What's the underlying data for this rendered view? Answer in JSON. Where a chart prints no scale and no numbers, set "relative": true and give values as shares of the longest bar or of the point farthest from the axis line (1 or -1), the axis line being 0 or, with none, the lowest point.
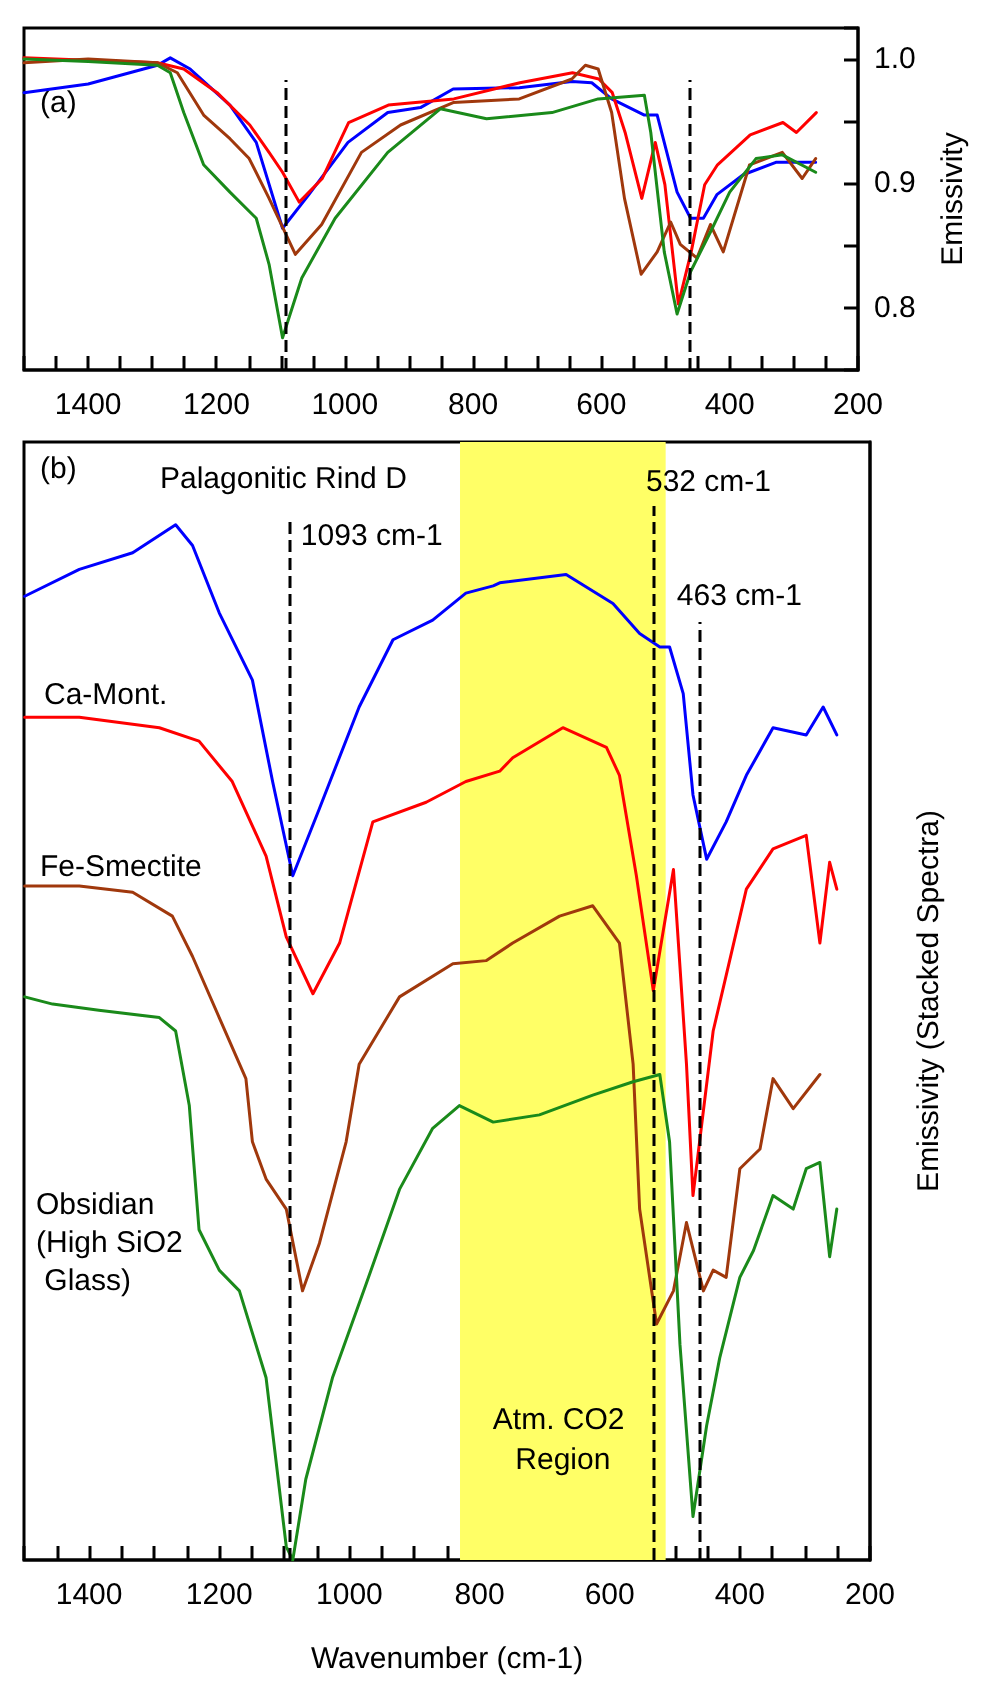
{
  "chart_data": [
    {
      "type": "line",
      "ylabel": "Emissivity",
      "annotations": [
        "(a)"
      ],
      "xlim": [
        1500,
        200
      ],
      "ylim": [
        0.75,
        1.025
      ],
      "xticks": [
        {
          "value": 1500,
          "label": null
        },
        {
          "value": 1450,
          "label": null
        },
        1400,
        {
          "value": 1350,
          "label": null
        },
        {
          "value": 1300,
          "label": null
        },
        {
          "value": 1250,
          "label": null
        },
        1200,
        {
          "value": 1150,
          "label": null
        },
        {
          "value": 1100,
          "label": null
        },
        {
          "value": 1050,
          "label": null
        },
        1000,
        {
          "value": 950,
          "label": null
        },
        {
          "value": 900,
          "label": null
        },
        {
          "value": 850,
          "label": null
        },
        800,
        {
          "value": 750,
          "label": null
        },
        {
          "value": 700,
          "label": null
        },
        {
          "value": 650,
          "label": null
        },
        600,
        {
          "value": 550,
          "label": null
        },
        {
          "value": 500,
          "label": null
        },
        {
          "value": 450,
          "label": null
        },
        400,
        {
          "value": 350,
          "label": null
        },
        {
          "value": 300,
          "label": null
        },
        {
          "value": 250,
          "label": null
        },
        200
      ],
      "yticks": [
        0.8,
        {
          "value": 0.85,
          "label": null
        },
        0.9,
        {
          "value": 0.95,
          "label": null
        },
        {
          "value": 1,
          "label": "1.0"
        }
      ],
      "ref_lines": [
        {
          "axis": "x",
          "value": 1093,
          "color": "#000000",
          "line_style": "dashed"
        },
        {
          "axis": "x",
          "value": 463,
          "color": "#000000",
          "line_style": "dashed"
        }
      ],
      "series": [
        {
          "color": "#0000ff",
          "x": [
            1500,
            1400,
            1292,
            1272,
            1241,
            1179,
            1138,
            1097,
            1056,
            995,
            933,
            882,
            831,
            728,
            646,
            615,
            584,
            533,
            513,
            482,
            461,
            441,
            420,
            379,
            328,
            266
          ],
          "values": [
            0.973,
            0.98,
            0.995,
            1.001,
            0.992,
            0.963,
            0.933,
            0.864,
            0.891,
            0.933,
            0.957,
            0.961,
            0.976,
            0.977,
            0.982,
            0.981,
            0.968,
            0.955,
            0.955,
            0.893,
            0.872,
            0.872,
            0.891,
            0.907,
            0.917,
            0.917
          ]
        },
        {
          "color": "#ff0000",
          "x": [
            1500,
            1400,
            1292,
            1251,
            1199,
            1148,
            1118,
            1097,
            1071,
            1035,
            994,
            932,
            830,
            727,
            645,
            604,
            583,
            563,
            537,
            516,
            501,
            480,
            460,
            439,
            419,
            368,
            317,
            296,
            265
          ],
          "values": [
            1.001,
            0.999,
            0.997,
            0.992,
            0.973,
            0.947,
            0.925,
            0.909,
            0.885,
            0.904,
            0.949,
            0.963,
            0.968,
            0.981,
            0.989,
            0.984,
            0.973,
            0.941,
            0.888,
            0.933,
            0.899,
            0.803,
            0.845,
            0.899,
            0.915,
            0.939,
            0.949,
            0.941,
            0.957
          ]
        },
        {
          "color": "#a0380c",
          "x": [
            1500,
            1400,
            1292,
            1261,
            1220,
            1179,
            1149,
            1118,
            1077,
            1036,
            974,
            913,
            831,
            728,
            646,
            625,
            605,
            584,
            564,
            538,
            513,
            492,
            477,
            451,
            430,
            410,
            369,
            318,
            287,
            266
          ],
          "values": [
            0.997,
            1.0,
            0.997,
            0.989,
            0.955,
            0.936,
            0.92,
            0.888,
            0.843,
            0.867,
            0.925,
            0.947,
            0.965,
            0.968,
            0.984,
            0.995,
            0.992,
            0.957,
            0.888,
            0.827,
            0.845,
            0.869,
            0.851,
            0.84,
            0.867,
            0.845,
            0.915,
            0.925,
            0.904,
            0.92
          ]
        },
        {
          "color": "#1a8a1a",
          "x": [
            1500,
            1400,
            1292,
            1272,
            1251,
            1220,
            1179,
            1138,
            1118,
            1097,
            1067,
            1015,
            933,
            851,
            779,
            677,
            605,
            533,
            523,
            502,
            482,
            461,
            430,
            400,
            359,
            318,
            266
          ],
          "values": [
            1.0,
            0.998,
            0.995,
            0.989,
            0.957,
            0.915,
            0.893,
            0.872,
            0.835,
            0.776,
            0.824,
            0.872,
            0.925,
            0.96,
            0.952,
            0.957,
            0.968,
            0.971,
            0.941,
            0.845,
            0.795,
            0.829,
            0.861,
            0.893,
            0.92,
            0.923,
            0.909
          ]
        }
      ]
    },
    {
      "type": "line",
      "relative": true,
      "xlabel": "Wavenumber (cm-1)",
      "ylabel": "Emissivity (Stacked Spectra)",
      "annotations": [
        "(b)"
      ],
      "xlim": [
        1500,
        200
      ],
      "xticks": [
        {
          "value": 1500,
          "label": null
        },
        {
          "value": 1450,
          "label": null
        },
        1400,
        {
          "value": 1350,
          "label": null
        },
        {
          "value": 1300,
          "label": null
        },
        {
          "value": 1250,
          "label": null
        },
        1200,
        {
          "value": 1150,
          "label": null
        },
        {
          "value": 1100,
          "label": null
        },
        {
          "value": 1050,
          "label": null
        },
        1000,
        {
          "value": 950,
          "label": null
        },
        {
          "value": 900,
          "label": null
        },
        {
          "value": 850,
          "label": null
        },
        800,
        {
          "value": 750,
          "label": null
        },
        {
          "value": 700,
          "label": null
        },
        {
          "value": 650,
          "label": null
        },
        600,
        {
          "value": 550,
          "label": null
        },
        {
          "value": 500,
          "label": null
        },
        {
          "value": 450,
          "label": null
        },
        400,
        {
          "value": 350,
          "label": null
        },
        {
          "value": 300,
          "label": null
        },
        {
          "value": 250,
          "label": null
        },
        200
      ],
      "ref_lines": [
        {
          "axis": "x",
          "value": 1093,
          "label": "1093 cm-1",
          "color": "#000000",
          "line_style": "dashed"
        },
        {
          "axis": "x",
          "value": 532,
          "label": "532 cm-1",
          "color": "#000000",
          "line_style": "dashed"
        },
        {
          "axis": "x",
          "value": 463,
          "label": "463 cm-1",
          "color": "#000000",
          "line_style": "dashed"
        }
      ],
      "bands": [
        {
          "axis": "x",
          "from": 830,
          "to": 514,
          "label": "Atm. CO2 Region",
          "color": "#ffff66"
        }
      ],
      "series": [
        {
          "name": "Palagonitic Rind D",
          "color": "#0000ff",
          "x": [
            1499,
            1415,
            1333,
            1267,
            1241,
            1200,
            1149,
            1118,
            1087,
            1046,
            985,
            933,
            872,
            821,
            779,
            769,
            667,
            595,
            554,
            523,
            508,
            487,
            472,
            451,
            421,
            390,
            349,
            298,
            272,
            251
          ],
          "values": [
            0.931,
            0.957,
            0.973,
            1.0,
            0.98,
            0.915,
            0.85,
            0.752,
            0.661,
            0.726,
            0.824,
            0.889,
            0.908,
            0.934,
            0.941,
            0.944,
            0.952,
            0.924,
            0.895,
            0.882,
            0.882,
            0.837,
            0.739,
            0.677,
            0.713,
            0.758,
            0.804,
            0.797,
            0.824,
            0.797
          ]
        },
        {
          "name": "Ca-Mont.",
          "color": "#ff0000",
          "x": [
            1499,
            1415,
            1292,
            1231,
            1180,
            1128,
            1097,
            1056,
            1015,
            964,
            882,
            821,
            769,
            749,
            672,
            605,
            585,
            559,
            533,
            502,
            482,
            472,
            441,
            390,
            349,
            298,
            277,
            262,
            251
          ],
          "values": [
            0.814,
            0.814,
            0.804,
            0.791,
            0.752,
            0.68,
            0.602,
            0.547,
            0.596,
            0.713,
            0.732,
            0.752,
            0.762,
            0.775,
            0.804,
            0.785,
            0.758,
            0.661,
            0.55,
            0.667,
            0.479,
            0.352,
            0.511,
            0.648,
            0.687,
            0.7,
            0.596,
            0.674,
            0.648
          ]
        },
        {
          "name": "Fe-Smectite",
          "color": "#a0380c",
          "x": [
            1499,
            1415,
            1333,
            1272,
            1241,
            1200,
            1159,
            1149,
            1128,
            1097,
            1072,
            1046,
            1005,
            985,
            923,
            841,
            790,
            749,
            677,
            626,
            585,
            564,
            554,
            528,
            502,
            482,
            456,
            441,
            421,
            400,
            369,
            349,
            318,
            277
          ],
          "values": [
            0.651,
            0.651,
            0.645,
            0.622,
            0.583,
            0.524,
            0.465,
            0.404,
            0.368,
            0.339,
            0.26,
            0.306,
            0.404,
            0.479,
            0.544,
            0.576,
            0.579,
            0.596,
            0.622,
            0.632,
            0.596,
            0.479,
            0.339,
            0.228,
            0.26,
            0.326,
            0.26,
            0.28,
            0.273,
            0.378,
            0.397,
            0.465,
            0.436,
            0.469
          ]
        },
        {
          "name": "Obsidian (High SiO2 Glass)",
          "color": "#1a8a1a",
          "x": [
            1499,
            1456,
            1385,
            1292,
            1267,
            1246,
            1231,
            1200,
            1169,
            1128,
            1097,
            1087,
            1067,
            1026,
            974,
            923,
            872,
            831,
            779,
            708,
            626,
            564,
            523,
            508,
            492,
            472,
            451,
            431,
            400,
            379,
            349,
            318,
            298,
            277,
            262,
            251
          ],
          "values": [
            0.544,
            0.537,
            0.531,
            0.524,
            0.511,
            0.439,
            0.319,
            0.28,
            0.26,
            0.176,
            0.013,
            0.0,
            0.078,
            0.176,
            0.267,
            0.358,
            0.417,
            0.439,
            0.423,
            0.43,
            0.449,
            0.462,
            0.469,
            0.404,
            0.208,
            0.042,
            0.13,
            0.195,
            0.273,
            0.299,
            0.352,
            0.339,
            0.378,
            0.384,
            0.293,
            0.339
          ]
        }
      ]
    }
  ]
}
